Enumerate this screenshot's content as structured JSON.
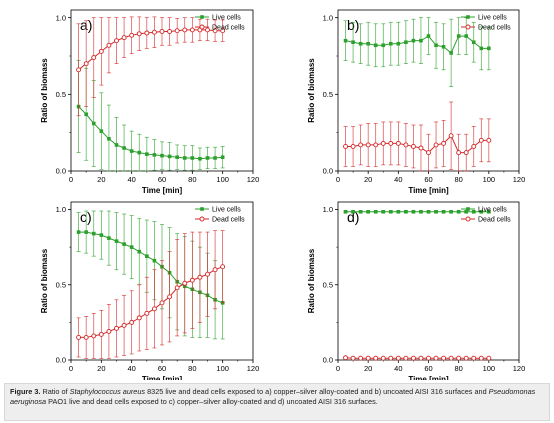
{
  "chart_data": [
    {
      "type": "line",
      "panel_label": "a)",
      "xlabel": "Time [min]",
      "ylabel": "Ratio of biomass",
      "xlim": [
        0,
        120
      ],
      "ylim": [
        0,
        1.05
      ],
      "x_ticks": [
        "0",
        "20",
        "40",
        "60",
        "80",
        "100",
        "120"
      ],
      "y_ticks": [
        "0.0",
        "0.5",
        "1.0"
      ],
      "legend_position": "top-right",
      "x": [
        5,
        10,
        15,
        20,
        25,
        30,
        35,
        40,
        45,
        50,
        55,
        60,
        65,
        70,
        75,
        80,
        85,
        90,
        95,
        100
      ],
      "series": [
        {
          "name": "Live cells",
          "color": "#2ca02c",
          "marker": "square-filled",
          "values": [
            0.42,
            0.37,
            0.31,
            0.26,
            0.21,
            0.17,
            0.15,
            0.13,
            0.12,
            0.11,
            0.105,
            0.1,
            0.095,
            0.09,
            0.085,
            0.085,
            0.08,
            0.085,
            0.085,
            0.09
          ],
          "errors": [
            0.3,
            0.3,
            0.28,
            0.25,
            0.22,
            0.18,
            0.15,
            0.13,
            0.12,
            0.11,
            0.1,
            0.09,
            0.09,
            0.08,
            0.08,
            0.08,
            0.07,
            0.07,
            0.07,
            0.07
          ]
        },
        {
          "name": "Dead cells",
          "color": "#d62728",
          "marker": "circle-open",
          "values": [
            0.66,
            0.7,
            0.74,
            0.78,
            0.82,
            0.85,
            0.87,
            0.885,
            0.895,
            0.9,
            0.905,
            0.91,
            0.91,
            0.915,
            0.92,
            0.92,
            0.92,
            0.92,
            0.915,
            0.915
          ],
          "errors": [
            0.3,
            0.28,
            0.26,
            0.22,
            0.18,
            0.15,
            0.13,
            0.12,
            0.11,
            0.1,
            0.1,
            0.09,
            0.09,
            0.08,
            0.08,
            0.08,
            0.07,
            0.07,
            0.07,
            0.07
          ]
        }
      ]
    },
    {
      "type": "line",
      "panel_label": "b)",
      "xlabel": "Time [min]",
      "ylabel": "Ratio of biomass",
      "xlim": [
        0,
        120
      ],
      "ylim": [
        0,
        1.05
      ],
      "x_ticks": [
        "0",
        "20",
        "40",
        "60",
        "80",
        "100",
        "120"
      ],
      "y_ticks": [
        "0.0",
        "0.5",
        "1.0"
      ],
      "legend_position": "top-right",
      "x": [
        5,
        10,
        15,
        20,
        25,
        30,
        35,
        40,
        45,
        50,
        55,
        60,
        65,
        70,
        75,
        80,
        85,
        90,
        95,
        100
      ],
      "series": [
        {
          "name": "Live cells",
          "color": "#2ca02c",
          "marker": "square-filled",
          "values": [
            0.85,
            0.84,
            0.83,
            0.83,
            0.82,
            0.82,
            0.83,
            0.83,
            0.84,
            0.85,
            0.85,
            0.88,
            0.82,
            0.81,
            0.77,
            0.88,
            0.88,
            0.84,
            0.8,
            0.8
          ],
          "errors": [
            0.13,
            0.13,
            0.13,
            0.14,
            0.14,
            0.14,
            0.14,
            0.14,
            0.14,
            0.14,
            0.15,
            0.12,
            0.15,
            0.15,
            0.22,
            0.12,
            0.12,
            0.13,
            0.14,
            0.14
          ]
        },
        {
          "name": "Dead cells",
          "color": "#d62728",
          "marker": "circle-open",
          "values": [
            0.16,
            0.16,
            0.17,
            0.17,
            0.17,
            0.18,
            0.18,
            0.18,
            0.17,
            0.16,
            0.15,
            0.12,
            0.17,
            0.18,
            0.23,
            0.12,
            0.12,
            0.16,
            0.2,
            0.2
          ],
          "errors": [
            0.13,
            0.13,
            0.13,
            0.14,
            0.14,
            0.14,
            0.14,
            0.14,
            0.14,
            0.14,
            0.15,
            0.12,
            0.15,
            0.15,
            0.22,
            0.12,
            0.12,
            0.13,
            0.14,
            0.14
          ]
        }
      ]
    },
    {
      "type": "line",
      "panel_label": "c)",
      "xlabel": "Time [min]",
      "ylabel": "Ratio of biomass",
      "xlim": [
        0,
        120
      ],
      "ylim": [
        0,
        1.05
      ],
      "x_ticks": [
        "0",
        "20",
        "40",
        "60",
        "80",
        "100",
        "120"
      ],
      "y_ticks": [
        "0.0",
        "0.5",
        "1.0"
      ],
      "legend_position": "top-right",
      "x": [
        5,
        10,
        15,
        20,
        25,
        30,
        35,
        40,
        45,
        50,
        55,
        60,
        65,
        70,
        75,
        80,
        85,
        90,
        95,
        100
      ],
      "series": [
        {
          "name": "Live cells",
          "color": "#2ca02c",
          "marker": "square-filled",
          "values": [
            0.85,
            0.85,
            0.84,
            0.83,
            0.81,
            0.79,
            0.77,
            0.75,
            0.72,
            0.69,
            0.66,
            0.62,
            0.58,
            0.52,
            0.49,
            0.47,
            0.45,
            0.43,
            0.4,
            0.38
          ],
          "errors": [
            0.13,
            0.14,
            0.15,
            0.16,
            0.18,
            0.19,
            0.2,
            0.21,
            0.22,
            0.24,
            0.26,
            0.28,
            0.3,
            0.32,
            0.33,
            0.32,
            0.3,
            0.28,
            0.26,
            0.24
          ]
        },
        {
          "name": "Dead cells",
          "color": "#d62728",
          "marker": "circle-open",
          "values": [
            0.15,
            0.15,
            0.16,
            0.17,
            0.19,
            0.21,
            0.23,
            0.25,
            0.28,
            0.31,
            0.34,
            0.38,
            0.42,
            0.48,
            0.51,
            0.53,
            0.55,
            0.57,
            0.6,
            0.62
          ],
          "errors": [
            0.13,
            0.14,
            0.15,
            0.16,
            0.18,
            0.19,
            0.2,
            0.21,
            0.22,
            0.24,
            0.26,
            0.28,
            0.3,
            0.32,
            0.33,
            0.32,
            0.3,
            0.28,
            0.26,
            0.24
          ]
        }
      ]
    },
    {
      "type": "line",
      "panel_label": "d)",
      "xlabel": "Time [min]",
      "ylabel": "Ratio of biomass",
      "xlim": [
        0,
        120
      ],
      "ylim": [
        0,
        1.05
      ],
      "x_ticks": [
        "0",
        "20",
        "40",
        "60",
        "80",
        "100",
        "120"
      ],
      "y_ticks": [
        "0.0",
        "0.5",
        "1.0"
      ],
      "legend_position": "top-right",
      "x": [
        5,
        10,
        15,
        20,
        25,
        30,
        35,
        40,
        45,
        50,
        55,
        60,
        65,
        70,
        75,
        80,
        85,
        90,
        95,
        100
      ],
      "series": [
        {
          "name": "Live cells",
          "color": "#2ca02c",
          "marker": "square-filled",
          "values": [
            0.985,
            0.985,
            0.985,
            0.985,
            0.985,
            0.985,
            0.985,
            0.985,
            0.985,
            0.985,
            0.985,
            0.985,
            0.985,
            0.985,
            0.985,
            0.985,
            0.985,
            0.985,
            0.985,
            0.985
          ],
          "errors": [
            0.005,
            0.005,
            0.005,
            0.005,
            0.005,
            0.005,
            0.005,
            0.005,
            0.005,
            0.005,
            0.005,
            0.005,
            0.005,
            0.005,
            0.005,
            0.005,
            0.005,
            0.005,
            0.005,
            0.005
          ]
        },
        {
          "name": "Dead cells",
          "color": "#d62728",
          "marker": "circle-open",
          "values": [
            0.015,
            0.012,
            0.012,
            0.012,
            0.012,
            0.012,
            0.012,
            0.012,
            0.012,
            0.012,
            0.012,
            0.012,
            0.012,
            0.012,
            0.012,
            0.012,
            0.012,
            0.012,
            0.012,
            0.012
          ],
          "errors": [
            0.005,
            0.005,
            0.005,
            0.005,
            0.005,
            0.005,
            0.005,
            0.005,
            0.005,
            0.005,
            0.005,
            0.005,
            0.005,
            0.005,
            0.005,
            0.005,
            0.005,
            0.005,
            0.005,
            0.005
          ]
        }
      ]
    }
  ],
  "caption": {
    "label": "Figure 3.",
    "text_1": " Ratio of ",
    "organism_1": "Staphylococcus aureus",
    "text_2": " 8325 live and dead cells exposed to a) copper–silver alloy-coated and b) uncoated AISI 316 surfaces and ",
    "organism_2": "Pseudomonas aeruginosa",
    "text_3": " PAO1 live and dead cells exposed to c) copper–silver alloy-coated and d) uncoated AISI 316 surfaces."
  }
}
